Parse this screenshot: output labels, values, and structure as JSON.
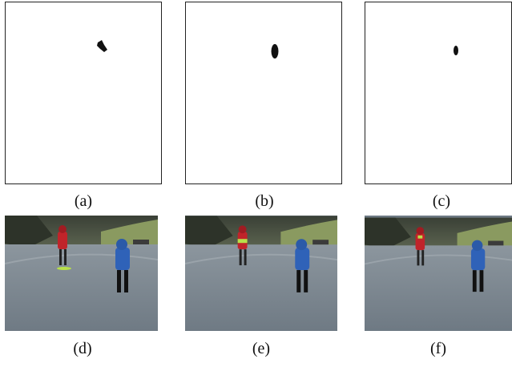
{
  "figure": {
    "top_row": [
      {
        "caption": "(a)"
      },
      {
        "caption": "(b)"
      },
      {
        "caption": "(c)"
      }
    ],
    "bottom_row": [
      {
        "caption": "(d)"
      },
      {
        "caption": "(e)"
      },
      {
        "caption": "(f)"
      }
    ]
  },
  "colors": {
    "blob": "#111111",
    "child_jacket_red": "#c0242a",
    "child_jacket_blue": "#2f62b8",
    "highlight_green": "#b8e04a",
    "ground": "#7f8a93",
    "grass": "#8a9a60"
  }
}
